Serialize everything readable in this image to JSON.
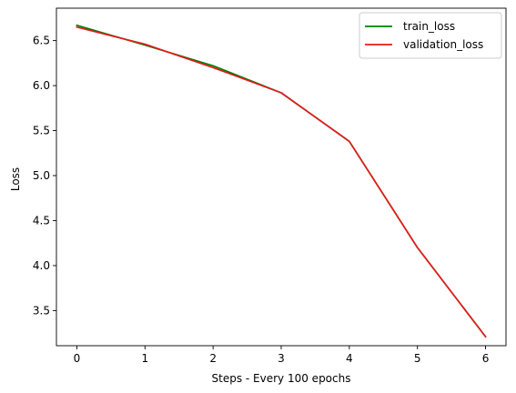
{
  "chart_data": {
    "type": "line",
    "title": "",
    "xlabel": "Steps - Every 100 epochs",
    "ylabel": "Loss",
    "x": [
      0,
      1,
      2,
      3,
      4,
      5,
      6
    ],
    "xlim": [
      -0.3,
      6.3
    ],
    "ylim": [
      3.11,
      6.86
    ],
    "xticks": [
      0,
      1,
      2,
      3,
      4,
      5,
      6
    ],
    "yticks": [
      3.5,
      4.0,
      4.5,
      5.0,
      5.5,
      6.0,
      6.5
    ],
    "xtick_labels": [
      "0",
      "1",
      "2",
      "3",
      "4",
      "5",
      "6"
    ],
    "ytick_labels": [
      "3.5",
      "4.0",
      "4.5",
      "5.0",
      "5.5",
      "6.0",
      "6.5"
    ],
    "grid": false,
    "legend_position": "top-right",
    "series": [
      {
        "name": "train_loss",
        "color": "#008000",
        "values": [
          6.67,
          6.45,
          6.22,
          5.92,
          5.38,
          4.2,
          3.21
        ]
      },
      {
        "name": "validation_loss",
        "color": "#e41a1c",
        "values": [
          6.65,
          6.46,
          6.2,
          5.92,
          5.38,
          4.2,
          3.21
        ]
      }
    ]
  }
}
